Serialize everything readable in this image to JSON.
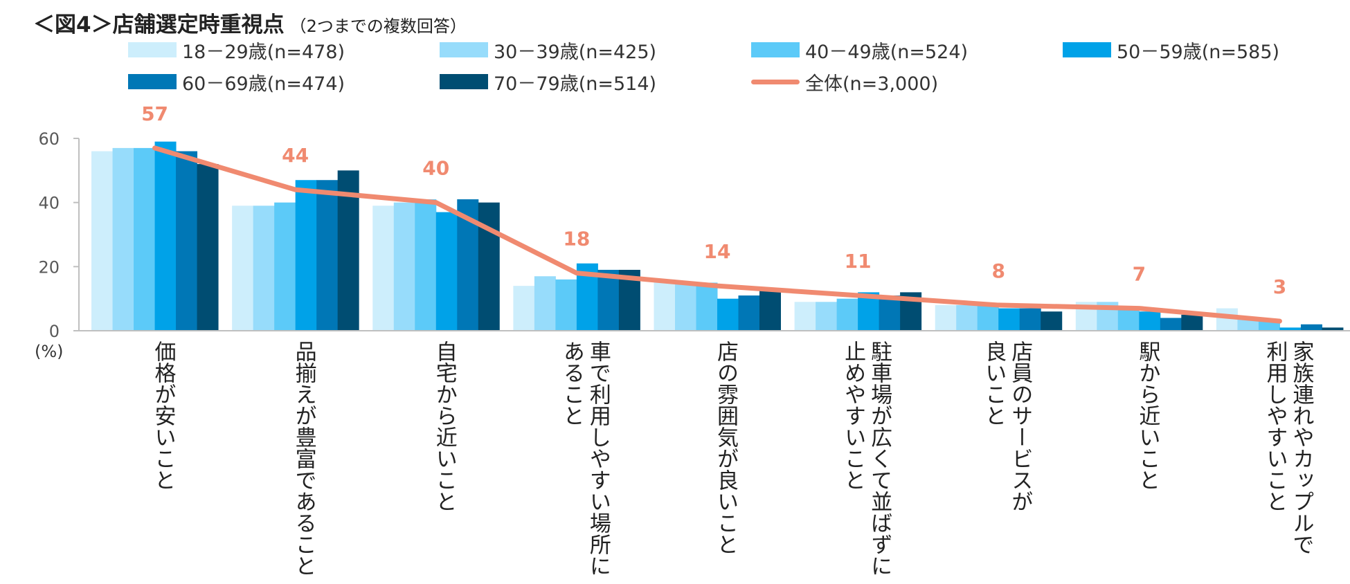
{
  "title": {
    "main": "＜図4＞店舗選定時重視点",
    "sub": "（2つまでの複数回答）"
  },
  "chart_data": {
    "type": "bar",
    "unit_label": "(%)",
    "ylim": [
      0,
      60
    ],
    "yticks": [
      0,
      20,
      40,
      60
    ],
    "grid": false,
    "legend_position": "top",
    "categories": [
      "価格が安いこと",
      "品揃えが豊富であること",
      "自宅から近いこと",
      "車で利用しやすい場所に\nあること",
      "店の雰囲気が良いこと",
      "駐車場が広くて並ばずに\n止めやすいこと",
      "店員のサービスが\n良いこと",
      "駅から近いこと",
      "家族連れやカップルで\n利用しやすいこと"
    ],
    "series": [
      {
        "name": "18－29歳(n=478)",
        "color": "#cdeefc",
        "values": [
          56,
          39,
          39,
          14,
          16,
          9,
          8,
          9,
          7
        ]
      },
      {
        "name": "30－39歳(n=425)",
        "color": "#97dcfb",
        "values": [
          57,
          39,
          40,
          17,
          15,
          9,
          8,
          9,
          4
        ]
      },
      {
        "name": "40－49歳(n=524)",
        "color": "#5ccaf8",
        "values": [
          57,
          40,
          41,
          16,
          15,
          10,
          8,
          7,
          3
        ]
      },
      {
        "name": "50－59歳(n=585)",
        "color": "#00a2e8",
        "values": [
          59,
          47,
          37,
          21,
          10,
          12,
          7,
          6,
          1
        ]
      },
      {
        "name": "60－69歳(n=474)",
        "color": "#0077b6",
        "values": [
          56,
          47,
          41,
          19,
          11,
          11,
          7,
          4,
          2
        ]
      },
      {
        "name": "70－79歳(n=514)",
        "color": "#004d72",
        "values": [
          52,
          50,
          40,
          19,
          13,
          12,
          6,
          5,
          1
        ]
      }
    ],
    "line_series": {
      "name": "全体(n=3,000)",
      "color": "#f08a70",
      "values": [
        57,
        44,
        40,
        18,
        14,
        11,
        8,
        7,
        3
      ]
    }
  }
}
